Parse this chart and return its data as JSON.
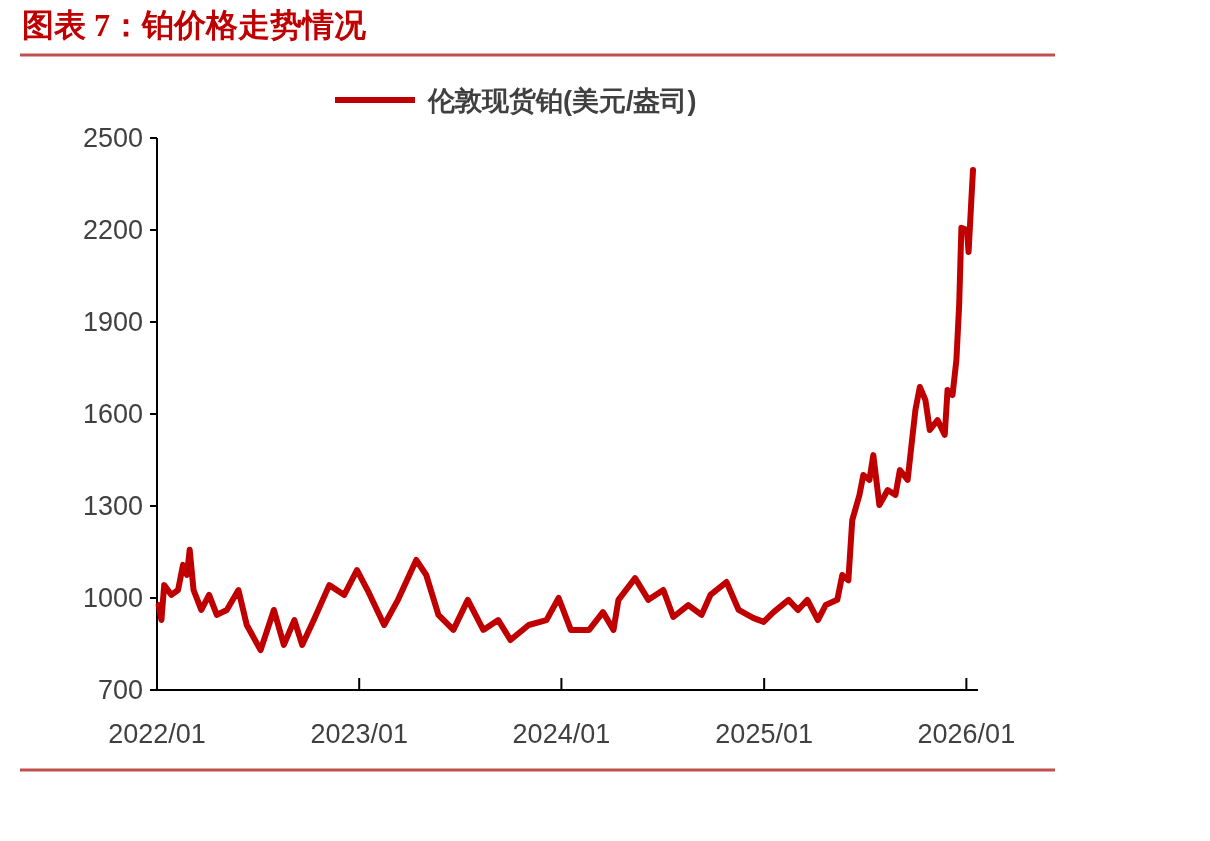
{
  "chart_data": {
    "type": "line",
    "title": "图表 7：铂价格走势情况",
    "x": [
      "2022-01-04",
      "2022-01-09",
      "2022-01-14",
      "2022-01-27",
      "2022-02-08",
      "2022-02-17",
      "2022-02-24",
      "2022-03-01",
      "2022-03-08",
      "2022-03-22",
      "2022-04-05",
      "2022-04-19",
      "2022-05-07",
      "2022-05-28",
      "2022-06-12",
      "2022-07-07",
      "2022-07-31",
      "2022-08-18",
      "2022-09-06",
      "2022-09-20",
      "2022-10-11",
      "2022-11-08",
      "2022-12-05",
      "2022-12-28",
      "2023-01-16",
      "2023-02-15",
      "2023-03-12",
      "2023-04-14",
      "2023-05-02",
      "2023-05-24",
      "2023-06-20",
      "2023-07-16",
      "2023-08-13",
      "2023-09-09",
      "2023-10-01",
      "2023-11-03",
      "2023-12-05",
      "2023-12-27",
      "2024-01-18",
      "2024-02-20",
      "2024-03-16",
      "2024-04-04",
      "2024-04-13",
      "2024-05-13",
      "2024-06-06",
      "2024-07-03",
      "2024-07-21",
      "2024-08-17",
      "2024-09-10",
      "2024-09-26",
      "2024-10-25",
      "2024-11-16",
      "2024-12-12",
      "2024-12-31",
      "2025-01-18",
      "2025-02-14",
      "2025-03-03",
      "2025-03-20",
      "2025-04-08",
      "2025-04-22",
      "2025-05-13",
      "2025-05-22",
      "2025-06-02",
      "2025-06-09",
      "2025-06-22",
      "2025-06-29",
      "2025-07-10",
      "2025-07-17",
      "2025-07-28",
      "2025-08-12",
      "2025-08-26",
      "2025-09-03",
      "2025-09-17",
      "2025-10-01",
      "2025-10-09",
      "2025-10-19",
      "2025-10-27",
      "2025-11-10",
      "2025-11-23",
      "2025-11-28",
      "2025-12-07",
      "2025-12-14",
      "2025-12-19",
      "2025-12-23",
      "2026-01-02",
      "2026-01-05",
      "2026-01-10",
      "2026-01-13"
    ],
    "series": [
      {
        "name": "伦敦现货铂(美元/盎司)",
        "color": "#c00000",
        "values": [
          977,
          928,
          1042,
          1010,
          1026,
          1108,
          1075,
          1157,
          1026,
          961,
          1010,
          945,
          961,
          1026,
          912,
          830,
          961,
          847,
          928,
          847,
          928,
          1042,
          1010,
          1091,
          1026,
          912,
          994,
          1124,
          1075,
          945,
          896,
          994,
          896,
          928,
          863,
          912,
          928,
          1000,
          896,
          896,
          954,
          896,
          994,
          1065,
          994,
          1026,
          938,
          977,
          945,
          1010,
          1052,
          961,
          935,
          922,
          954,
          994,
          961,
          994,
          928,
          977,
          994,
          1075,
          1058,
          1254,
          1336,
          1401,
          1385,
          1466,
          1303,
          1352,
          1336,
          1417,
          1385,
          1613,
          1688,
          1646,
          1548,
          1580,
          1532,
          1678,
          1662,
          1776,
          1955,
          2207,
          2200,
          2128,
          2298,
          2396
        ]
      }
    ],
    "xlim": [
      "2022-01-01",
      "2026-01-22"
    ],
    "xticks": [
      {
        "value": "2022-01-01",
        "label": "2022/01"
      },
      {
        "value": "2023-01-01",
        "label": "2023/01"
      },
      {
        "value": "2024-01-01",
        "label": "2024/01"
      },
      {
        "value": "2025-01-01",
        "label": "2025/01"
      },
      {
        "value": "2026-01-01",
        "label": "2026/01"
      }
    ],
    "ylim": [
      700,
      2500
    ],
    "yticks": [
      700,
      1000,
      1300,
      1600,
      1900,
      2200,
      2500
    ],
    "grid": false,
    "legend": "top"
  }
}
